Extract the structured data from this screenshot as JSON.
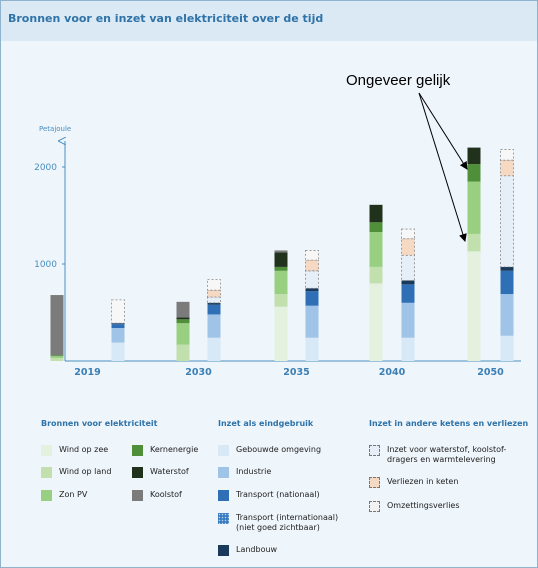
{
  "title": "Bronnen voor en inzet van elektriciteit over de tijd",
  "annotation": "Ongeveer gelijk",
  "colors": {
    "wind_op_zee": "#e4f1df",
    "wind_op_land": "#c1e0ae",
    "zon_pv": "#98cf80",
    "kernenergie": "#4f8f3a",
    "waterstof": "#20321c",
    "koolstof": "#7b7b7b",
    "gebouwde_omgeving": "#d7e8f7",
    "industrie": "#9fc4e8",
    "transport_nationaal": "#2f6fb6",
    "transport_internationaal": "#3a7cc0",
    "landbouw": "#1a3a5c",
    "inzet_ketens": "#e6eef8",
    "verliezen_in_keten": "#f6d9c3",
    "omzettingsverlies": "#f2f2f2"
  },
  "chart_data": {
    "type": "bar",
    "title": "Bronnen voor en inzet van elektriciteit over de tijd",
    "ylabel": "Petajoule",
    "ylim": [
      0,
      2200
    ],
    "yticks": [
      1000,
      2000
    ],
    "categories": [
      "2019",
      "2030",
      "2035",
      "2040",
      "2050"
    ],
    "supply_series": [
      {
        "name": "Wind op zee",
        "values": [
          0,
          0,
          560,
          800,
          1130
        ]
      },
      {
        "name": "Wind op land",
        "values": [
          30,
          170,
          130,
          170,
          180
        ]
      },
      {
        "name": "Zon PV",
        "values": [
          20,
          220,
          240,
          360,
          540
        ]
      },
      {
        "name": "Kernenergie",
        "values": [
          10,
          40,
          40,
          100,
          180
        ]
      },
      {
        "name": "Waterstof",
        "values": [
          0,
          20,
          150,
          180,
          170
        ]
      },
      {
        "name": "Koolstof",
        "values": [
          620,
          160,
          20,
          0,
          0
        ]
      }
    ],
    "demand_series": [
      {
        "name": "Gebouwde omgeving",
        "values": [
          190,
          240,
          240,
          240,
          260
        ]
      },
      {
        "name": "Industrie",
        "values": [
          150,
          240,
          330,
          360,
          430
        ]
      },
      {
        "name": "Transport (nationaal)",
        "values": [
          40,
          100,
          150,
          190,
          240
        ]
      },
      {
        "name": "Transport (internationaal) (niet goed zichtbaar)",
        "values": [
          0,
          0,
          0,
          0,
          0
        ]
      },
      {
        "name": "Landbouw",
        "values": [
          10,
          20,
          30,
          40,
          40
        ]
      },
      {
        "name": "Inzet voor waterstof, koolstof-dragers en warmtelevering",
        "values": [
          0,
          60,
          180,
          260,
          940
        ]
      },
      {
        "name": "Verliezen in keten",
        "values": [
          0,
          70,
          110,
          170,
          160
        ]
      },
      {
        "name": "Omzettingsverlies",
        "values": [
          240,
          110,
          100,
          100,
          110
        ]
      }
    ],
    "legend": {
      "groups": [
        {
          "title": "Bronnen voor elektriciteit",
          "items": [
            {
              "label": "Wind op zee",
              "color": "#e4f1df",
              "style": "solid"
            },
            {
              "label": "Kernenergie",
              "color": "#4f8f3a",
              "style": "solid"
            },
            {
              "label": "Wind op land",
              "color": "#c1e0ae",
              "style": "solid"
            },
            {
              "label": "Waterstof",
              "color": "#20321c",
              "style": "solid"
            },
            {
              "label": "Zon PV",
              "color": "#98cf80",
              "style": "solid"
            },
            {
              "label": "Koolstof",
              "color": "#7b7b7b",
              "style": "solid"
            }
          ]
        },
        {
          "title": "Inzet als eindgebruik",
          "items": [
            {
              "label": "Gebouwde omgeving",
              "color": "#d7e8f7",
              "style": "solid"
            },
            {
              "label": "Industrie",
              "color": "#9fc4e8",
              "style": "solid"
            },
            {
              "label": "Transport (nationaal)",
              "color": "#2f6fb6",
              "style": "solid"
            },
            {
              "label": "Transport (internationaal)\n(niet goed zichtbaar)",
              "color": "#3a7cc0",
              "style": "dotted"
            },
            {
              "label": "Landbouw",
              "color": "#1a3a5c",
              "style": "solid"
            }
          ]
        },
        {
          "title": "Inzet in andere ketens en verliezen",
          "items": [
            {
              "label": "Inzet voor waterstof, koolstof-\ndragers en warmtelevering",
              "color": "#e6eef8",
              "style": "dashed"
            },
            {
              "label": "Verliezen in keten",
              "color": "#f6d9c3",
              "style": "dashed"
            },
            {
              "label": "Omzettingsverlies",
              "color": "#f2f2f2",
              "style": "dashed"
            }
          ]
        }
      ]
    }
  }
}
